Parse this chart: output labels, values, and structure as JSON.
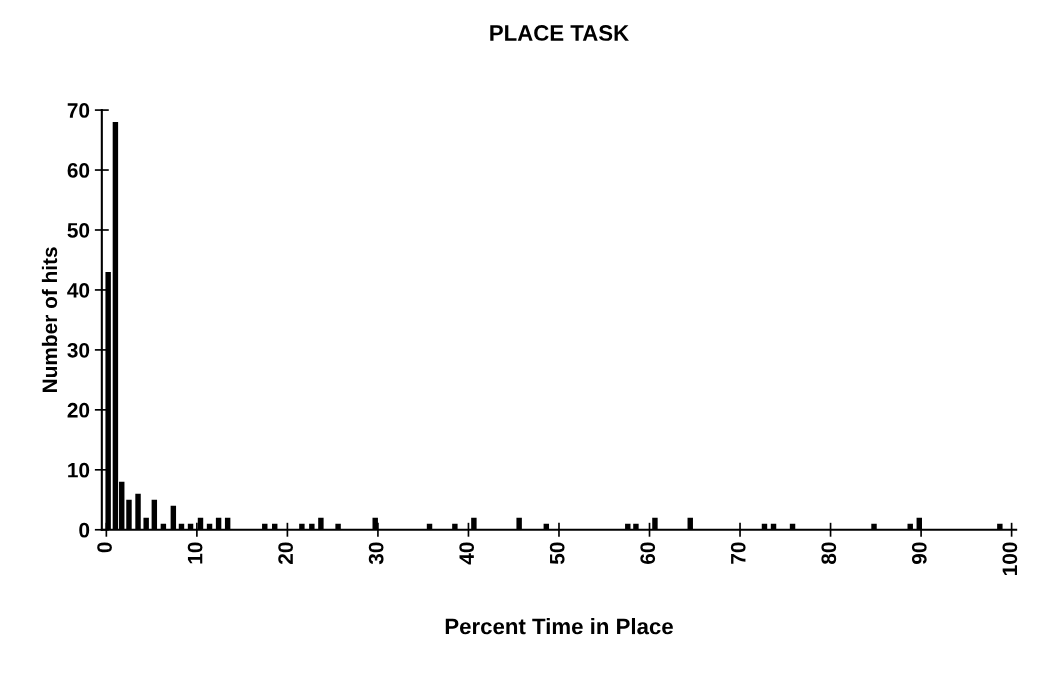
{
  "chart_data": {
    "type": "bar",
    "title": "PLACE TASK",
    "xlabel": "Percent Time in Place",
    "ylabel": "Number of hits",
    "x": [
      0.2,
      1.0,
      1.7,
      2.5,
      3.5,
      4.4,
      5.3,
      6.3,
      7.4,
      8.3,
      9.3,
      10.4,
      11.4,
      12.4,
      13.4,
      17.5,
      18.6,
      21.6,
      22.7,
      23.7,
      25.6,
      29.7,
      35.7,
      38.5,
      40.6,
      45.6,
      48.6,
      57.6,
      58.5,
      60.6,
      64.5,
      72.7,
      73.7,
      75.8,
      84.8,
      88.8,
      89.8,
      98.7
    ],
    "values": [
      43,
      68,
      8,
      5,
      6,
      2,
      5,
      1,
      4,
      1,
      1,
      2,
      1,
      2,
      2,
      1,
      1,
      1,
      1,
      2,
      1,
      2,
      1,
      1,
      2,
      2,
      1,
      1,
      1,
      2,
      2,
      1,
      1,
      1,
      1,
      1,
      2,
      1
    ],
    "color": "#000000",
    "xlim": [
      -0.5,
      100.5
    ],
    "xticks": [
      0,
      10,
      20,
      30,
      40,
      50,
      60,
      70,
      80,
      90,
      100
    ],
    "ylim": [
      0,
      70
    ],
    "yticks": [
      0,
      10,
      20,
      30,
      40,
      50,
      60,
      70
    ],
    "grid": false,
    "legend": false
  }
}
